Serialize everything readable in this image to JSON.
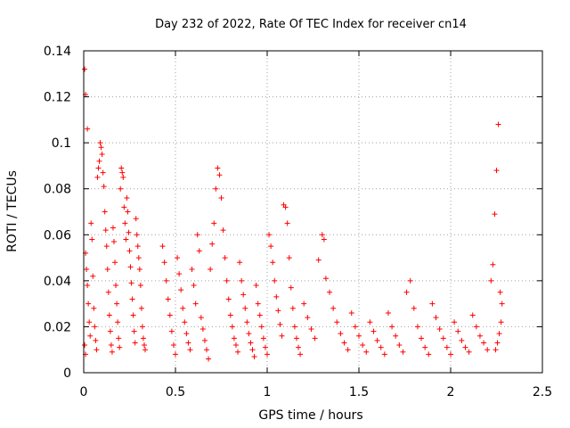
{
  "chart_data": {
    "type": "scatter",
    "title": "Day 232 of 2022, Rate Of TEC Index for receiver cn14",
    "xlabel": "GPS time / hours",
    "ylabel": "ROTI / TECUs",
    "xlim": [
      0,
      2.5
    ],
    "ylim": [
      0,
      0.14
    ],
    "x_ticks": [
      0,
      0.5,
      1,
      1.5,
      2,
      2.5
    ],
    "x_tick_labels": [
      "0",
      "0.5",
      "1",
      "1.5",
      "2",
      "2.5"
    ],
    "y_ticks": [
      0,
      0.02,
      0.04,
      0.06,
      0.08,
      0.1,
      0.12,
      0.14
    ],
    "y_tick_labels": [
      "0",
      "0.02",
      "0.04",
      "0.06",
      "0.08",
      "0.1",
      "0.12",
      "0.14"
    ],
    "grid": true,
    "marker": "+",
    "marker_color": "#ff0000",
    "series": [
      {
        "name": "ROTI",
        "points": [
          [
            0.005,
            0.132
          ],
          [
            0.01,
            0.121
          ],
          [
            0.02,
            0.106
          ],
          [
            0.01,
            0.052
          ],
          [
            0.015,
            0.045
          ],
          [
            0.02,
            0.038
          ],
          [
            0.025,
            0.03
          ],
          [
            0.03,
            0.022
          ],
          [
            0.035,
            0.016
          ],
          [
            0.005,
            0.012
          ],
          [
            0.01,
            0.008
          ],
          [
            0.04,
            0.065
          ],
          [
            0.045,
            0.058
          ],
          [
            0.05,
            0.042
          ],
          [
            0.055,
            0.028
          ],
          [
            0.06,
            0.02
          ],
          [
            0.065,
            0.014
          ],
          [
            0.07,
            0.01
          ],
          [
            0.075,
            0.085
          ],
          [
            0.08,
            0.089
          ],
          [
            0.085,
            0.092
          ],
          [
            0.09,
            0.1
          ],
          [
            0.095,
            0.098
          ],
          [
            0.1,
            0.095
          ],
          [
            0.105,
            0.087
          ],
          [
            0.11,
            0.081
          ],
          [
            0.115,
            0.07
          ],
          [
            0.12,
            0.062
          ],
          [
            0.125,
            0.055
          ],
          [
            0.13,
            0.045
          ],
          [
            0.135,
            0.035
          ],
          [
            0.14,
            0.025
          ],
          [
            0.145,
            0.018
          ],
          [
            0.15,
            0.012
          ],
          [
            0.155,
            0.009
          ],
          [
            0.16,
            0.063
          ],
          [
            0.165,
            0.057
          ],
          [
            0.17,
            0.048
          ],
          [
            0.175,
            0.038
          ],
          [
            0.18,
            0.03
          ],
          [
            0.185,
            0.022
          ],
          [
            0.19,
            0.015
          ],
          [
            0.195,
            0.011
          ],
          [
            0.2,
            0.08
          ],
          [
            0.205,
            0.089
          ],
          [
            0.21,
            0.087
          ],
          [
            0.215,
            0.085
          ],
          [
            0.22,
            0.072
          ],
          [
            0.225,
            0.065
          ],
          [
            0.23,
            0.058
          ],
          [
            0.235,
            0.076
          ],
          [
            0.24,
            0.07
          ],
          [
            0.245,
            0.061
          ],
          [
            0.25,
            0.053
          ],
          [
            0.255,
            0.046
          ],
          [
            0.26,
            0.039
          ],
          [
            0.265,
            0.032
          ],
          [
            0.27,
            0.025
          ],
          [
            0.275,
            0.018
          ],
          [
            0.28,
            0.013
          ],
          [
            0.285,
            0.067
          ],
          [
            0.29,
            0.06
          ],
          [
            0.295,
            0.055
          ],
          [
            0.3,
            0.05
          ],
          [
            0.305,
            0.045
          ],
          [
            0.31,
            0.038
          ],
          [
            0.315,
            0.028
          ],
          [
            0.32,
            0.02
          ],
          [
            0.325,
            0.015
          ],
          [
            0.33,
            0.012
          ],
          [
            0.335,
            0.01
          ],
          [
            0.43,
            0.055
          ],
          [
            0.44,
            0.048
          ],
          [
            0.45,
            0.04
          ],
          [
            0.46,
            0.032
          ],
          [
            0.47,
            0.025
          ],
          [
            0.48,
            0.018
          ],
          [
            0.49,
            0.012
          ],
          [
            0.5,
            0.008
          ],
          [
            0.51,
            0.05
          ],
          [
            0.52,
            0.043
          ],
          [
            0.53,
            0.036
          ],
          [
            0.54,
            0.028
          ],
          [
            0.55,
            0.022
          ],
          [
            0.56,
            0.017
          ],
          [
            0.57,
            0.013
          ],
          [
            0.58,
            0.01
          ],
          [
            0.59,
            0.045
          ],
          [
            0.6,
            0.038
          ],
          [
            0.61,
            0.03
          ],
          [
            0.62,
            0.06
          ],
          [
            0.63,
            0.053
          ],
          [
            0.64,
            0.024
          ],
          [
            0.65,
            0.019
          ],
          [
            0.66,
            0.014
          ],
          [
            0.67,
            0.01
          ],
          [
            0.68,
            0.006
          ],
          [
            0.69,
            0.045
          ],
          [
            0.7,
            0.056
          ],
          [
            0.71,
            0.065
          ],
          [
            0.72,
            0.08
          ],
          [
            0.73,
            0.089
          ],
          [
            0.74,
            0.086
          ],
          [
            0.75,
            0.076
          ],
          [
            0.76,
            0.062
          ],
          [
            0.77,
            0.05
          ],
          [
            0.78,
            0.04
          ],
          [
            0.79,
            0.032
          ],
          [
            0.8,
            0.025
          ],
          [
            0.81,
            0.02
          ],
          [
            0.82,
            0.015
          ],
          [
            0.83,
            0.012
          ],
          [
            0.84,
            0.009
          ],
          [
            0.85,
            0.048
          ],
          [
            0.86,
            0.04
          ],
          [
            0.87,
            0.034
          ],
          [
            0.88,
            0.028
          ],
          [
            0.89,
            0.022
          ],
          [
            0.9,
            0.017
          ],
          [
            0.91,
            0.013
          ],
          [
            0.92,
            0.01
          ],
          [
            0.93,
            0.007
          ],
          [
            0.94,
            0.038
          ],
          [
            0.95,
            0.03
          ],
          [
            0.96,
            0.025
          ],
          [
            0.97,
            0.02
          ],
          [
            0.98,
            0.015
          ],
          [
            0.99,
            0.011
          ],
          [
            1.0,
            0.008
          ],
          [
            1.01,
            0.06
          ],
          [
            1.02,
            0.055
          ],
          [
            1.03,
            0.048
          ],
          [
            1.04,
            0.04
          ],
          [
            1.05,
            0.033
          ],
          [
            1.06,
            0.027
          ],
          [
            1.07,
            0.021
          ],
          [
            1.08,
            0.016
          ],
          [
            1.09,
            0.073
          ],
          [
            1.1,
            0.072
          ],
          [
            1.11,
            0.065
          ],
          [
            1.12,
            0.05
          ],
          [
            1.13,
            0.037
          ],
          [
            1.14,
            0.028
          ],
          [
            1.15,
            0.02
          ],
          [
            1.16,
            0.015
          ],
          [
            1.17,
            0.011
          ],
          [
            1.18,
            0.008
          ],
          [
            1.2,
            0.03
          ],
          [
            1.22,
            0.024
          ],
          [
            1.24,
            0.019
          ],
          [
            1.26,
            0.015
          ],
          [
            1.28,
            0.049
          ],
          [
            1.3,
            0.06
          ],
          [
            1.31,
            0.058
          ],
          [
            1.32,
            0.041
          ],
          [
            1.34,
            0.035
          ],
          [
            1.36,
            0.028
          ],
          [
            1.38,
            0.022
          ],
          [
            1.4,
            0.017
          ],
          [
            1.42,
            0.013
          ],
          [
            1.44,
            0.01
          ],
          [
            1.46,
            0.026
          ],
          [
            1.48,
            0.02
          ],
          [
            1.5,
            0.016
          ],
          [
            1.52,
            0.012
          ],
          [
            1.54,
            0.009
          ],
          [
            1.56,
            0.022
          ],
          [
            1.58,
            0.018
          ],
          [
            1.6,
            0.014
          ],
          [
            1.62,
            0.011
          ],
          [
            1.64,
            0.008
          ],
          [
            1.66,
            0.026
          ],
          [
            1.68,
            0.02
          ],
          [
            1.7,
            0.016
          ],
          [
            1.72,
            0.012
          ],
          [
            1.74,
            0.009
          ],
          [
            1.76,
            0.035
          ],
          [
            1.78,
            0.04
          ],
          [
            1.8,
            0.028
          ],
          [
            1.82,
            0.02
          ],
          [
            1.84,
            0.015
          ],
          [
            1.86,
            0.011
          ],
          [
            1.88,
            0.008
          ],
          [
            1.9,
            0.03
          ],
          [
            1.92,
            0.024
          ],
          [
            1.94,
            0.019
          ],
          [
            1.96,
            0.015
          ],
          [
            1.98,
            0.011
          ],
          [
            2.0,
            0.008
          ],
          [
            2.02,
            0.022
          ],
          [
            2.04,
            0.018
          ],
          [
            2.06,
            0.014
          ],
          [
            2.08,
            0.011
          ],
          [
            2.1,
            0.009
          ],
          [
            2.12,
            0.025
          ],
          [
            2.14,
            0.02
          ],
          [
            2.16,
            0.016
          ],
          [
            2.18,
            0.013
          ],
          [
            2.2,
            0.01
          ],
          [
            2.22,
            0.04
          ],
          [
            2.23,
            0.047
          ],
          [
            2.24,
            0.069
          ],
          [
            2.25,
            0.088
          ],
          [
            2.26,
            0.108
          ],
          [
            2.27,
            0.035
          ],
          [
            2.28,
            0.03
          ],
          [
            2.275,
            0.022
          ],
          [
            2.265,
            0.017
          ],
          [
            2.255,
            0.013
          ],
          [
            2.245,
            0.01
          ]
        ]
      }
    ]
  }
}
